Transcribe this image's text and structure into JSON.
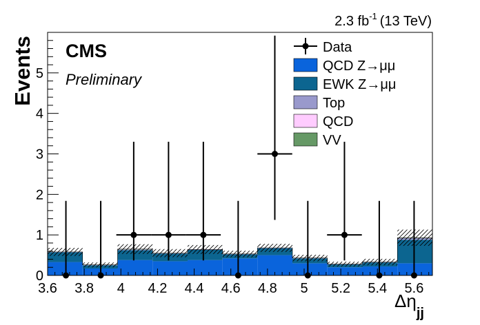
{
  "chart_data": {
    "type": "bar",
    "subtype": "stacked-histogram-with-data-points",
    "lumi_label": "2.3 fb",
    "lumi_exponent": "-1",
    "lumi_energy": "(13 TeV)",
    "experiment": "CMS",
    "status": "Preliminary",
    "ylabel": "Events",
    "xlabel_main": "Δη",
    "xlabel_sub": "jj",
    "xlim": [
      3.6,
      5.7
    ],
    "ylim": [
      0,
      6
    ],
    "x_ticks": [
      "3.6",
      "3.8",
      "4",
      "4.2",
      "4.4",
      "4.6",
      "4.8",
      "5",
      "5.2",
      "5.4",
      "5.6"
    ],
    "y_ticks": [
      "0",
      "1",
      "2",
      "3",
      "4",
      "5"
    ],
    "legend": [
      {
        "name": "Data",
        "kind": "marker",
        "color": "#000000"
      },
      {
        "name": "QCD Z→μμ",
        "kind": "fill",
        "color": "#0a64dc"
      },
      {
        "name": "EWK Z→μμ",
        "kind": "fill",
        "color": "#0c6590"
      },
      {
        "name": "Top",
        "kind": "fill",
        "color": "#9999cc"
      },
      {
        "name": "QCD",
        "kind": "fill",
        "color": "#ffccff"
      },
      {
        "name": "VV",
        "kind": "fill",
        "color": "#669966"
      }
    ],
    "legend_placement": "top-right",
    "bins": [
      {
        "low": 3.6,
        "high": 3.791
      },
      {
        "low": 3.791,
        "high": 3.982
      },
      {
        "low": 3.982,
        "high": 4.173
      },
      {
        "low": 4.173,
        "high": 4.364
      },
      {
        "low": 4.364,
        "high": 4.555
      },
      {
        "low": 4.555,
        "high": 4.745
      },
      {
        "low": 4.745,
        "high": 4.936
      },
      {
        "low": 4.936,
        "high": 5.127
      },
      {
        "low": 5.127,
        "high": 5.318
      },
      {
        "low": 5.318,
        "high": 5.509
      },
      {
        "low": 5.509,
        "high": 5.7
      }
    ],
    "series": [
      {
        "name": "QCD Z→μμ",
        "values": [
          0.33,
          0.17,
          0.38,
          0.35,
          0.38,
          0.42,
          0.5,
          0.3,
          0.2,
          0.22,
          0.3
        ],
        "color": "#0a64dc"
      },
      {
        "name": "EWK Z→μμ",
        "values": [
          0.24,
          0.08,
          0.24,
          0.19,
          0.25,
          0.1,
          0.17,
          0.12,
          0.07,
          0.1,
          0.58
        ],
        "color": "#0c6590"
      },
      {
        "name": "Top",
        "values": [
          0.01,
          0.01,
          0.02,
          0.01,
          0.01,
          0.01,
          0.01,
          0.01,
          0.01,
          0.01,
          0.04
        ],
        "color": "#9999cc"
      },
      {
        "name": "QCD",
        "values": [
          0.0,
          0.0,
          0.0,
          0.0,
          0.0,
          0.0,
          0.0,
          0.0,
          0.0,
          0.0,
          0.0
        ],
        "color": "#ffccff"
      },
      {
        "name": "VV",
        "values": [
          0.0,
          0.0,
          0.01,
          0.0,
          0.0,
          0.0,
          0.0,
          0.0,
          0.0,
          0.0,
          0.01
        ],
        "color": "#669966"
      }
    ],
    "mc_uncertainty": [
      0.1,
      0.06,
      0.12,
      0.1,
      0.11,
      0.08,
      0.1,
      0.08,
      0.06,
      0.08,
      0.2
    ],
    "data": [
      {
        "x": 3.7,
        "y": 0,
        "err_up": 1.84,
        "err_down": 0,
        "xerr": 0
      },
      {
        "x": 3.89,
        "y": 0,
        "err_up": 1.84,
        "err_down": 0,
        "xerr": 0
      },
      {
        "x": 4.07,
        "y": 1,
        "err_up": 2.3,
        "err_down": 0.63,
        "xerr": 0.095
      },
      {
        "x": 4.26,
        "y": 1,
        "err_up": 2.3,
        "err_down": 0.63,
        "xerr": 0.095
      },
      {
        "x": 4.45,
        "y": 1,
        "err_up": 2.3,
        "err_down": 0.63,
        "xerr": 0.095
      },
      {
        "x": 4.64,
        "y": 0,
        "err_up": 1.84,
        "err_down": 0,
        "xerr": 0
      },
      {
        "x": 4.84,
        "y": 3,
        "err_up": 2.92,
        "err_down": 1.63,
        "xerr": 0.095
      },
      {
        "x": 5.02,
        "y": 0,
        "err_up": 1.84,
        "err_down": 0,
        "xerr": 0
      },
      {
        "x": 5.22,
        "y": 1,
        "err_up": 2.3,
        "err_down": 0.63,
        "xerr": 0.095
      },
      {
        "x": 5.41,
        "y": 0,
        "err_up": 1.84,
        "err_down": 0,
        "xerr": 0
      },
      {
        "x": 5.6,
        "y": 0,
        "err_up": 1.84,
        "err_down": 0,
        "xerr": 0
      }
    ]
  }
}
